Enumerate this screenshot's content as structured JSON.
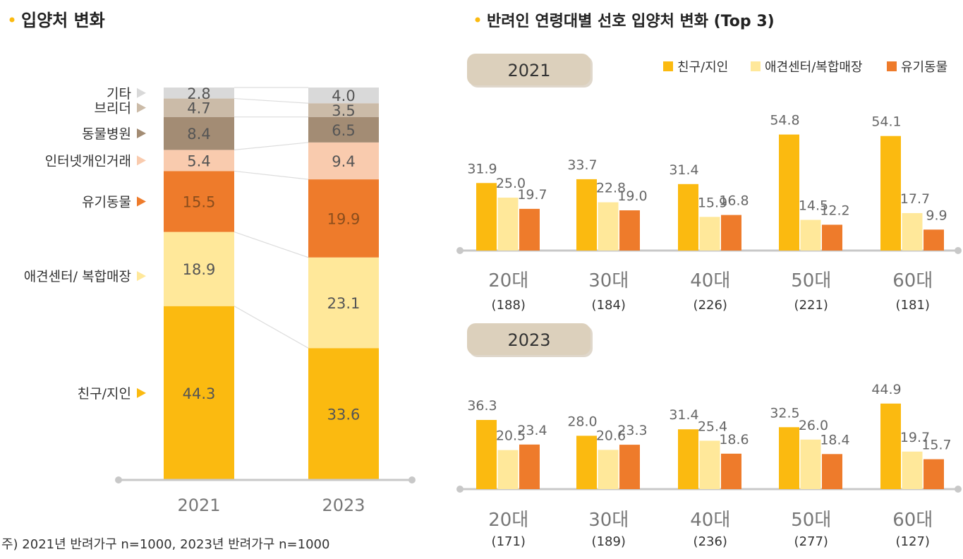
{
  "colors": {
    "friends": "#FBBA10",
    "shop": "#FFE89A",
    "abandoned": "#EE7B2B",
    "internet": "#F9CBAE",
    "hospital": "#A38C74",
    "breeder": "#CBBBA8",
    "other": "#D9D9D9",
    "year_box": "#DCD0BC"
  },
  "chart_data": [
    {
      "type": "bar",
      "stacked": true,
      "title": "입양처 변화",
      "categories": [
        "2021",
        "2023"
      ],
      "series": [
        {
          "name": "친구/지인",
          "values": [
            44.3,
            33.6
          ]
        },
        {
          "name": "애견센터/ 복합매장",
          "values": [
            18.9,
            23.1
          ]
        },
        {
          "name": "유기동물",
          "values": [
            15.5,
            19.9
          ]
        },
        {
          "name": "인터넷개인거래",
          "values": [
            5.4,
            9.4
          ]
        },
        {
          "name": "동물병원",
          "values": [
            8.4,
            6.5
          ]
        },
        {
          "name": "브리더",
          "values": [
            4.7,
            3.5
          ]
        },
        {
          "name": "기타",
          "values": [
            2.8,
            4.0
          ]
        }
      ],
      "value_labels": [
        [
          "44.3",
          "33.6"
        ],
        [
          "18.9",
          "23.1"
        ],
        [
          "15.5",
          "19.9"
        ],
        [
          "5.4",
          "9.4"
        ],
        [
          "8.4",
          "6.5"
        ],
        [
          "4.7",
          "3.5"
        ],
        [
          "2.8",
          "4.0"
        ]
      ],
      "note": "주) 2021년 반려가구 n=1000, 2023년 반려가구 n=1000"
    },
    {
      "type": "bar",
      "title": "반려인 연령대별 선호 입양처 변화 (Top 3)",
      "legend": [
        "친구/지인",
        "애견센터/복합매장",
        "유기동물"
      ],
      "legend_position": "top-right",
      "panels": [
        {
          "year": "2021",
          "categories": [
            "20대",
            "30대",
            "40대",
            "50대",
            "60대"
          ],
          "sample_sizes": [
            "(188)",
            "(184)",
            "(226)",
            "(221)",
            "(181)"
          ],
          "series": [
            {
              "name": "친구/지인",
              "values": [
                31.9,
                33.7,
                31.4,
                54.8,
                54.1
              ]
            },
            {
              "name": "애견센터/복합매장",
              "values": [
                25.0,
                22.8,
                15.9,
                14.5,
                17.7
              ]
            },
            {
              "name": "유기동물",
              "values": [
                19.7,
                19.0,
                16.8,
                12.2,
                9.9
              ]
            }
          ],
          "value_labels": [
            [
              "31.9",
              "33.7",
              "31.4",
              "54.8",
              "54.1"
            ],
            [
              "25.0",
              "22.8",
              "15.9",
              "14.5",
              "17.7"
            ],
            [
              "19.7",
              "19.0",
              "16.8",
              "12.2",
              "9.9"
            ]
          ]
        },
        {
          "year": "2023",
          "categories": [
            "20대",
            "30대",
            "40대",
            "50대",
            "60대"
          ],
          "sample_sizes": [
            "(171)",
            "(189)",
            "(236)",
            "(277)",
            "(127)"
          ],
          "series": [
            {
              "name": "친구/지인",
              "values": [
                36.3,
                28.0,
                31.4,
                32.5,
                44.9
              ]
            },
            {
              "name": "애견센터/복합매장",
              "values": [
                20.5,
                20.6,
                25.4,
                26.0,
                19.7
              ]
            },
            {
              "name": "유기동물",
              "values": [
                23.4,
                23.3,
                18.6,
                18.4,
                15.7
              ]
            }
          ],
          "value_labels": [
            [
              "36.3",
              "28.0",
              "31.4",
              "32.5",
              "44.9"
            ],
            [
              "20.5",
              "20.6",
              "25.4",
              "26.0",
              "19.7"
            ],
            [
              "23.4",
              "23.3",
              "18.6",
              "18.4",
              "15.7"
            ]
          ]
        }
      ]
    }
  ]
}
